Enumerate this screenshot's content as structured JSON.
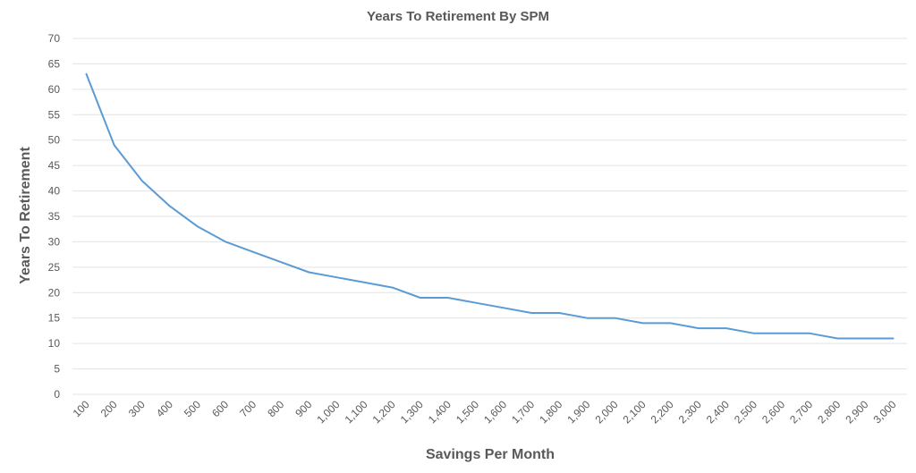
{
  "chart_data": {
    "type": "line",
    "title": "Years To Retirement By SPM",
    "xlabel": "Savings Per Month",
    "ylabel": "Years To Retirement",
    "categories": [
      "100",
      "200",
      "300",
      "400",
      "500",
      "600",
      "700",
      "800",
      "900",
      "1,000",
      "1,100",
      "1,200",
      "1,300",
      "1,400",
      "1,500",
      "1,600",
      "1,700",
      "1,800",
      "1,900",
      "2,000",
      "2,100",
      "2,200",
      "2,300",
      "2,400",
      "2,500",
      "2,600",
      "2,700",
      "2,800",
      "2,900",
      "3,000"
    ],
    "series": [
      {
        "values": [
          63,
          49,
          42,
          37,
          33,
          30,
          28,
          26,
          24,
          23,
          22,
          21,
          19,
          19,
          18,
          17,
          16,
          16,
          15,
          15,
          14,
          14,
          13,
          13,
          12,
          12,
          12,
          11,
          11,
          11
        ],
        "color": "#5b9bd5"
      }
    ],
    "ylim": [
      0,
      70
    ],
    "yticks": [
      0,
      5,
      10,
      15,
      20,
      25,
      30,
      35,
      40,
      45,
      50,
      55,
      60,
      65,
      70
    ],
    "grid": true,
    "legend": "none"
  }
}
